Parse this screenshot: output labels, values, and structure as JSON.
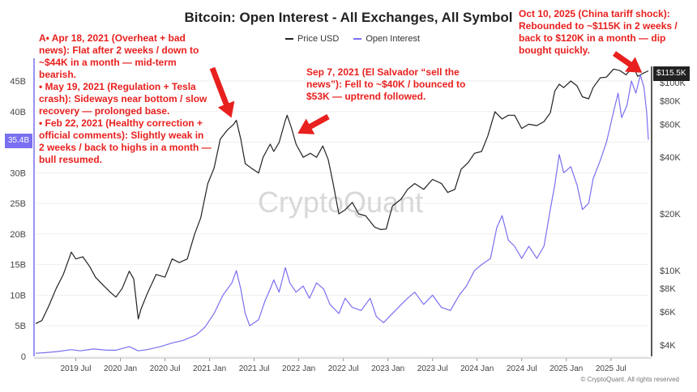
{
  "chart_data": {
    "type": "line",
    "title": "Bitcoin: Open Interest - All Exchanges, All Symbol",
    "watermark": "CryptoQuant",
    "footer": "© CryptoQuant. All rights reserved",
    "legend": {
      "position": "top-center",
      "entries": [
        {
          "name": "Price USD",
          "color": "#222222"
        },
        {
          "name": "Open Interest",
          "color": "#7a6ff0"
        }
      ]
    },
    "x_axis": {
      "ticks": [
        "2019 Jul",
        "2020 Jan",
        "2020 Jul",
        "2021 Jan",
        "2021 Jul",
        "2022 Jan",
        "2022 Jul",
        "2023 Jan",
        "2023 Jul",
        "2024 Jan",
        "2024 Jul",
        "2025 Jan",
        "2025 Jul"
      ],
      "tick_values": [
        2019.5,
        2020.0,
        2020.5,
        2021.0,
        2021.5,
        2022.0,
        2022.5,
        2023.0,
        2023.5,
        2024.0,
        2024.5,
        2025.0,
        2025.5
      ],
      "range": [
        2019.05,
        2025.92
      ]
    },
    "y_left": {
      "label": "Open Interest",
      "ticks": [
        "0",
        "5B",
        "10B",
        "15B",
        "20B",
        "25B",
        "30B",
        "35B",
        "40B",
        "45B"
      ],
      "tick_values": [
        0,
        5,
        10,
        15,
        20,
        25,
        30,
        35,
        40,
        45
      ],
      "range": [
        0,
        48
      ],
      "current_label": "35.4B",
      "current_value": 35.4,
      "current_color": "#7a6ff0"
    },
    "y_right": {
      "label": "Price USD",
      "scale": "log",
      "ticks": [
        "$4K",
        "$6K",
        "$8K",
        "$10K",
        "$20K",
        "$40K",
        "$60K",
        "$80K",
        "$100K"
      ],
      "tick_values": [
        4000,
        6000,
        8000,
        10000,
        20000,
        40000,
        60000,
        80000,
        100000
      ],
      "current_label": "$115.5K",
      "current_value": 115500,
      "current_color": "#222222"
    },
    "series": [
      {
        "name": "Price USD",
        "axis": "right",
        "color": "#222222",
        "points": [
          [
            2019.05,
            5200
          ],
          [
            2019.12,
            5400
          ],
          [
            2019.2,
            6500
          ],
          [
            2019.28,
            8000
          ],
          [
            2019.36,
            9500
          ],
          [
            2019.45,
            12500
          ],
          [
            2019.5,
            11500
          ],
          [
            2019.58,
            11800
          ],
          [
            2019.66,
            10400
          ],
          [
            2019.72,
            9200
          ],
          [
            2019.8,
            8400
          ],
          [
            2019.88,
            7700
          ],
          [
            2019.95,
            7200
          ],
          [
            2020.02,
            8000
          ],
          [
            2020.1,
            9900
          ],
          [
            2020.15,
            9000
          ],
          [
            2020.2,
            5500
          ],
          [
            2020.23,
            6200
          ],
          [
            2020.3,
            7500
          ],
          [
            2020.4,
            9500
          ],
          [
            2020.5,
            9200
          ],
          [
            2020.58,
            11500
          ],
          [
            2020.66,
            11000
          ],
          [
            2020.75,
            11500
          ],
          [
            2020.83,
            15500
          ],
          [
            2020.9,
            19000
          ],
          [
            2020.98,
            29000
          ],
          [
            2021.05,
            35000
          ],
          [
            2021.12,
            50000
          ],
          [
            2021.2,
            56000
          ],
          [
            2021.27,
            60000
          ],
          [
            2021.3,
            63000
          ],
          [
            2021.35,
            50000
          ],
          [
            2021.4,
            37000
          ],
          [
            2021.47,
            35000
          ],
          [
            2021.55,
            33000
          ],
          [
            2021.6,
            40000
          ],
          [
            2021.68,
            47000
          ],
          [
            2021.72,
            43000
          ],
          [
            2021.78,
            48000
          ],
          [
            2021.85,
            63000
          ],
          [
            2021.87,
            67000
          ],
          [
            2021.92,
            57000
          ],
          [
            2021.97,
            47000
          ],
          [
            2022.05,
            40000
          ],
          [
            2022.13,
            42000
          ],
          [
            2022.2,
            40000
          ],
          [
            2022.27,
            46000
          ],
          [
            2022.33,
            39000
          ],
          [
            2022.38,
            30000
          ],
          [
            2022.45,
            20000
          ],
          [
            2022.52,
            21000
          ],
          [
            2022.6,
            23000
          ],
          [
            2022.67,
            20000
          ],
          [
            2022.75,
            19500
          ],
          [
            2022.85,
            17000
          ],
          [
            2022.92,
            16500
          ],
          [
            2022.98,
            16600
          ],
          [
            2023.05,
            22000
          ],
          [
            2023.15,
            24000
          ],
          [
            2023.22,
            27000
          ],
          [
            2023.3,
            29000
          ],
          [
            2023.4,
            27000
          ],
          [
            2023.5,
            30500
          ],
          [
            2023.6,
            29000
          ],
          [
            2023.67,
            26000
          ],
          [
            2023.75,
            27000
          ],
          [
            2023.82,
            34500
          ],
          [
            2023.9,
            37500
          ],
          [
            2023.97,
            42000
          ],
          [
            2024.05,
            43000
          ],
          [
            2024.12,
            52000
          ],
          [
            2024.2,
            70000
          ],
          [
            2024.28,
            64000
          ],
          [
            2024.35,
            67000
          ],
          [
            2024.42,
            67000
          ],
          [
            2024.5,
            57000
          ],
          [
            2024.58,
            60000
          ],
          [
            2024.67,
            59000
          ],
          [
            2024.75,
            62000
          ],
          [
            2024.82,
            69000
          ],
          [
            2024.87,
            90000
          ],
          [
            2024.92,
            98000
          ],
          [
            2024.97,
            94000
          ],
          [
            2025.05,
            102000
          ],
          [
            2025.12,
            96000
          ],
          [
            2025.18,
            84000
          ],
          [
            2025.25,
            82000
          ],
          [
            2025.3,
            94000
          ],
          [
            2025.38,
            106000
          ],
          [
            2025.45,
            107000
          ],
          [
            2025.53,
            118000
          ],
          [
            2025.6,
            116000
          ],
          [
            2025.67,
            110000
          ],
          [
            2025.75,
            122000
          ],
          [
            2025.8,
            108000
          ],
          [
            2025.86,
            112000
          ],
          [
            2025.92,
            115500
          ]
        ]
      },
      {
        "name": "Open Interest",
        "axis": "left",
        "color": "#7a6ff0",
        "points": [
          [
            2019.05,
            0.5
          ],
          [
            2019.15,
            0.6
          ],
          [
            2019.3,
            0.8
          ],
          [
            2019.45,
            1.1
          ],
          [
            2019.55,
            0.9
          ],
          [
            2019.7,
            1.2
          ],
          [
            2019.85,
            1.0
          ],
          [
            2019.95,
            1.0
          ],
          [
            2020.1,
            1.6
          ],
          [
            2020.2,
            0.9
          ],
          [
            2020.3,
            1.1
          ],
          [
            2020.45,
            1.6
          ],
          [
            2020.58,
            2.2
          ],
          [
            2020.7,
            2.6
          ],
          [
            2020.85,
            3.5
          ],
          [
            2020.95,
            4.8
          ],
          [
            2021.05,
            7.0
          ],
          [
            2021.15,
            10.0
          ],
          [
            2021.25,
            12.0
          ],
          [
            2021.3,
            14.0
          ],
          [
            2021.35,
            11.0
          ],
          [
            2021.4,
            7.0
          ],
          [
            2021.45,
            5.0
          ],
          [
            2021.55,
            6.0
          ],
          [
            2021.62,
            9.0
          ],
          [
            2021.68,
            11.0
          ],
          [
            2021.72,
            12.5
          ],
          [
            2021.78,
            10.5
          ],
          [
            2021.85,
            14.5
          ],
          [
            2021.9,
            12.0
          ],
          [
            2021.97,
            10.5
          ],
          [
            2022.05,
            11.5
          ],
          [
            2022.12,
            9.5
          ],
          [
            2022.2,
            12.0
          ],
          [
            2022.28,
            11.0
          ],
          [
            2022.35,
            8.5
          ],
          [
            2022.45,
            7.0
          ],
          [
            2022.52,
            9.5
          ],
          [
            2022.6,
            8.0
          ],
          [
            2022.7,
            7.5
          ],
          [
            2022.8,
            9.5
          ],
          [
            2022.87,
            6.5
          ],
          [
            2022.95,
            5.5
          ],
          [
            2023.05,
            7.0
          ],
          [
            2023.15,
            8.5
          ],
          [
            2023.22,
            9.5
          ],
          [
            2023.3,
            10.5
          ],
          [
            2023.4,
            8.5
          ],
          [
            2023.5,
            10.0
          ],
          [
            2023.6,
            8.0
          ],
          [
            2023.7,
            7.5
          ],
          [
            2023.8,
            10.0
          ],
          [
            2023.88,
            11.5
          ],
          [
            2023.97,
            14.0
          ],
          [
            2024.05,
            15.0
          ],
          [
            2024.15,
            16.0
          ],
          [
            2024.22,
            21.0
          ],
          [
            2024.28,
            23.0
          ],
          [
            2024.35,
            19.0
          ],
          [
            2024.42,
            18.0
          ],
          [
            2024.5,
            16.0
          ],
          [
            2024.58,
            18.0
          ],
          [
            2024.67,
            16.0
          ],
          [
            2024.75,
            18.0
          ],
          [
            2024.82,
            24.0
          ],
          [
            2024.87,
            28.0
          ],
          [
            2024.92,
            33.0
          ],
          [
            2024.97,
            30.0
          ],
          [
            2025.05,
            31.0
          ],
          [
            2025.12,
            28.0
          ],
          [
            2025.18,
            24.0
          ],
          [
            2025.25,
            25.0
          ],
          [
            2025.3,
            29.0
          ],
          [
            2025.38,
            32.0
          ],
          [
            2025.45,
            35.0
          ],
          [
            2025.53,
            40.0
          ],
          [
            2025.58,
            43.0
          ],
          [
            2025.62,
            39.0
          ],
          [
            2025.68,
            41.0
          ],
          [
            2025.73,
            45.0
          ],
          [
            2025.78,
            43.0
          ],
          [
            2025.83,
            46.0
          ],
          [
            2025.87,
            44.0
          ],
          [
            2025.9,
            40.0
          ],
          [
            2025.92,
            35.4
          ]
        ]
      }
    ]
  },
  "annotations": [
    {
      "id": "annot-2021-may",
      "text": "A• Apr 18, 2021 (Overheat + bad\nnews): Flat after 2 weeks / down to\n~$44K in a month — mid-term\nbearish.\n • May 19, 2021 (Regulation + Tesla\ncrash): Sideways near bottom / slow\nrecovery — prolonged base.\n • Feb 22, 2021 (Healthy correction +\nofficial comments): Slightly weak in\n2 weeks / back to highs in a month —\nbull resumed."
    },
    {
      "id": "annot-2021-sep",
      "text": "Sep 7, 2021 (El Salvador “sell the\nnews”): Fell to ~$40K / bounced to\n$53K — uptrend followed."
    },
    {
      "id": "annot-2025-oct",
      "text": "Oct 10, 2025 (China tariff shock):\nRebounded to ~$115K in 2 weeks /\nback to $120K in a month — dip\nbought quickly."
    }
  ],
  "colors": {
    "annotation": "#e8201e",
    "price": "#222222",
    "open_interest": "#7a6ff0"
  }
}
